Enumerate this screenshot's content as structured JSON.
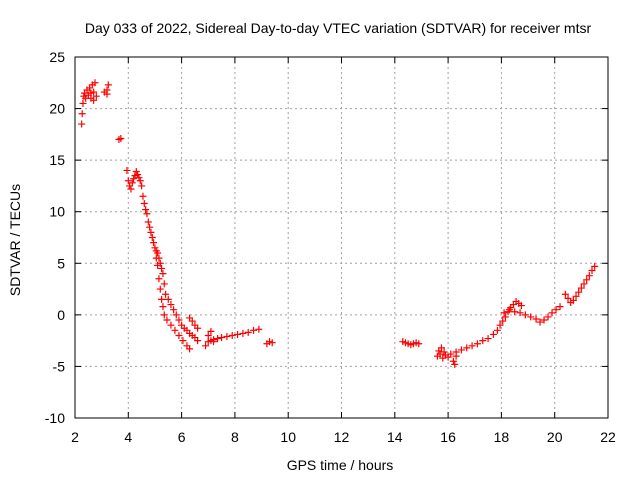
{
  "chart_data": {
    "type": "scatter",
    "title": "Day 033 of 2022, Sidereal Day-to-day VTEC variation (SDTVAR) for receiver mtsr",
    "xlabel": "GPS time / hours",
    "ylabel": "SDTVAR / TECUs",
    "xlim": [
      2,
      22
    ],
    "ylim": [
      -10,
      25
    ],
    "xticks": [
      2,
      4,
      6,
      8,
      10,
      12,
      14,
      16,
      18,
      20,
      22
    ],
    "yticks": [
      -10,
      -5,
      0,
      5,
      10,
      15,
      20,
      25
    ],
    "grid": true,
    "marker": "+",
    "series": [
      {
        "name": "SDTVAR mtsr",
        "color": "#ff0000",
        "points": [
          [
            2.25,
            18.5
          ],
          [
            2.27,
            19.5
          ],
          [
            2.3,
            20.5
          ],
          [
            2.33,
            21.2
          ],
          [
            2.36,
            21.5
          ],
          [
            2.4,
            21.0
          ],
          [
            2.45,
            21.8
          ],
          [
            2.5,
            21.3
          ],
          [
            2.55,
            22.0
          ],
          [
            2.6,
            21.5
          ],
          [
            2.65,
            22.3
          ],
          [
            2.7,
            21.6
          ],
          [
            2.75,
            22.5
          ],
          [
            2.8,
            21.2
          ],
          [
            2.7,
            20.8
          ],
          [
            2.6,
            21.0
          ],
          [
            3.1,
            21.6
          ],
          [
            3.2,
            21.8
          ],
          [
            3.25,
            22.3
          ],
          [
            3.2,
            21.4
          ],
          [
            3.65,
            17.0
          ],
          [
            3.72,
            17.1
          ],
          [
            3.95,
            14.0
          ],
          [
            4.0,
            13.0
          ],
          [
            4.05,
            12.5
          ],
          [
            4.1,
            12.2
          ],
          [
            4.15,
            12.8
          ],
          [
            4.2,
            13.2
          ],
          [
            4.25,
            13.5
          ],
          [
            4.3,
            13.9
          ],
          [
            4.35,
            13.6
          ],
          [
            4.4,
            13.3
          ],
          [
            4.45,
            13.0
          ],
          [
            4.5,
            12.5
          ],
          [
            4.55,
            11.5
          ],
          [
            4.6,
            10.8
          ],
          [
            4.65,
            10.2
          ],
          [
            4.7,
            9.8
          ],
          [
            4.75,
            9.0
          ],
          [
            4.8,
            8.5
          ],
          [
            4.85,
            8.0
          ],
          [
            4.9,
            7.5
          ],
          [
            4.95,
            7.0
          ],
          [
            5.0,
            6.5
          ],
          [
            5.05,
            6.2
          ],
          [
            5.1,
            6.0
          ],
          [
            5.15,
            5.5
          ],
          [
            5.2,
            5.0
          ],
          [
            5.25,
            4.5
          ],
          [
            5.3,
            4.0
          ],
          [
            5.35,
            3.0
          ],
          [
            5.4,
            2.0
          ],
          [
            5.5,
            1.5
          ],
          [
            5.6,
            1.0
          ],
          [
            5.7,
            0.5
          ],
          [
            5.8,
            0.0
          ],
          [
            5.9,
            -0.5
          ],
          [
            6.0,
            -1.0
          ],
          [
            6.1,
            -1.3
          ],
          [
            6.2,
            -1.5
          ],
          [
            6.3,
            -1.8
          ],
          [
            6.4,
            -2.0
          ],
          [
            6.5,
            -2.2
          ],
          [
            6.6,
            -2.5
          ],
          [
            5.05,
            5.5
          ],
          [
            5.1,
            4.8
          ],
          [
            5.15,
            3.5
          ],
          [
            5.2,
            2.5
          ],
          [
            5.25,
            1.5
          ],
          [
            5.3,
            0.8
          ],
          [
            5.35,
            0.0
          ],
          [
            5.45,
            -0.5
          ],
          [
            5.6,
            -1.0
          ],
          [
            5.75,
            -1.5
          ],
          [
            5.9,
            -2.0
          ],
          [
            6.05,
            -2.5
          ],
          [
            6.2,
            -3.0
          ],
          [
            6.3,
            -3.3
          ],
          [
            6.3,
            -0.3
          ],
          [
            6.4,
            -0.6
          ],
          [
            6.5,
            -1.0
          ],
          [
            6.6,
            -1.3
          ],
          [
            6.9,
            -3.0
          ],
          [
            7.0,
            -2.6
          ],
          [
            7.1,
            -2.5
          ],
          [
            7.2,
            -2.4
          ],
          [
            7.35,
            -2.3
          ],
          [
            7.5,
            -2.2
          ],
          [
            7.7,
            -2.1
          ],
          [
            7.9,
            -2.0
          ],
          [
            8.1,
            -1.9
          ],
          [
            8.3,
            -1.8
          ],
          [
            8.5,
            -1.7
          ],
          [
            8.7,
            -1.5
          ],
          [
            8.9,
            -1.4
          ],
          [
            7.0,
            -2.0
          ],
          [
            7.1,
            -1.6
          ],
          [
            7.2,
            -2.6
          ],
          [
            9.2,
            -2.8
          ],
          [
            9.3,
            -2.6
          ],
          [
            9.4,
            -2.7
          ],
          [
            14.3,
            -2.6
          ],
          [
            14.4,
            -2.7
          ],
          [
            14.5,
            -2.8
          ],
          [
            14.6,
            -2.9
          ],
          [
            14.7,
            -2.8
          ],
          [
            14.8,
            -2.7
          ],
          [
            14.9,
            -2.8
          ],
          [
            15.6,
            -4.0
          ],
          [
            15.65,
            -3.5
          ],
          [
            15.7,
            -3.8
          ],
          [
            15.75,
            -3.2
          ],
          [
            15.8,
            -4.2
          ],
          [
            15.85,
            -3.6
          ],
          [
            15.9,
            -3.9
          ],
          [
            16.0,
            -4.1
          ],
          [
            16.1,
            -3.8
          ],
          [
            16.2,
            -4.5
          ],
          [
            16.25,
            -4.8
          ],
          [
            16.3,
            -4.0
          ],
          [
            16.3,
            -3.6
          ],
          [
            16.5,
            -3.4
          ],
          [
            16.7,
            -3.2
          ],
          [
            16.9,
            -3.0
          ],
          [
            17.1,
            -2.8
          ],
          [
            17.3,
            -2.5
          ],
          [
            17.5,
            -2.3
          ],
          [
            17.7,
            -1.9
          ],
          [
            17.85,
            -1.5
          ],
          [
            17.95,
            -1.0
          ],
          [
            18.05,
            -0.6
          ],
          [
            18.15,
            -0.2
          ],
          [
            18.25,
            0.3
          ],
          [
            18.35,
            0.7
          ],
          [
            18.45,
            1.0
          ],
          [
            18.55,
            1.3
          ],
          [
            18.65,
            1.1
          ],
          [
            18.75,
            0.9
          ],
          [
            18.1,
            0.2
          ],
          [
            18.3,
            0.5
          ],
          [
            18.5,
            0.3
          ],
          [
            18.7,
            0.2
          ],
          [
            18.9,
            0.0
          ],
          [
            19.1,
            -0.2
          ],
          [
            19.3,
            -0.4
          ],
          [
            19.45,
            -0.7
          ],
          [
            19.6,
            -0.5
          ],
          [
            19.75,
            -0.2
          ],
          [
            19.9,
            0.2
          ],
          [
            20.05,
            0.5
          ],
          [
            20.2,
            0.8
          ],
          [
            20.4,
            2.0
          ],
          [
            20.5,
            1.6
          ],
          [
            20.6,
            1.2
          ],
          [
            20.7,
            1.4
          ],
          [
            20.8,
            1.8
          ],
          [
            20.9,
            2.2
          ],
          [
            21.0,
            2.6
          ],
          [
            21.1,
            3.0
          ],
          [
            21.2,
            3.4
          ],
          [
            21.3,
            3.8
          ],
          [
            21.4,
            4.3
          ],
          [
            21.5,
            4.7
          ]
        ]
      }
    ]
  }
}
